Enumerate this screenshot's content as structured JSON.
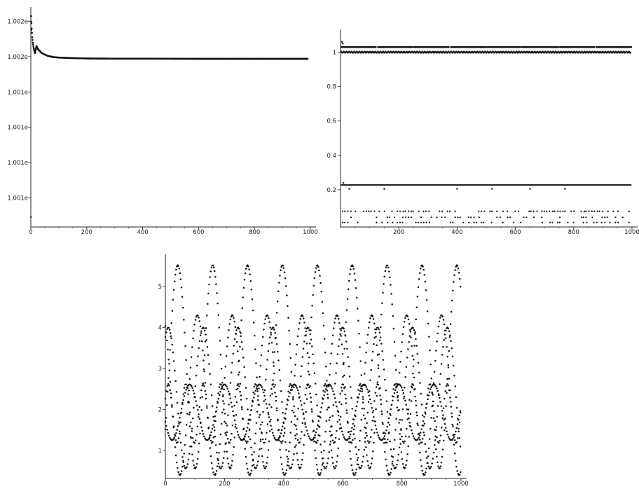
{
  "chart_data": [
    {
      "type": "scatter",
      "title": "",
      "xlabel": "",
      "ylabel": "",
      "xlim": [
        0,
        1000
      ],
      "ylim": [
        1.00095,
        1.00215
      ],
      "grid": false,
      "x_ticks": [
        0,
        200,
        400,
        600,
        800,
        1000
      ],
      "y_ticks": [
        {
          "value": 1.0011,
          "label": "1.001e"
        },
        {
          "value": 1.0013,
          "label": "1.001e"
        },
        {
          "value": 1.0015,
          "label": "1.001e"
        },
        {
          "value": 1.0017,
          "label": "1.001e"
        },
        {
          "value": 1.0019,
          "label": "1.002e"
        },
        {
          "value": 1.0021,
          "label": "1.002e"
        }
      ],
      "series": [
        {
          "description": "decaying curve",
          "points": [
            [
              1,
              1.00213
            ],
            [
              2,
              1.00209
            ],
            [
              3,
              1.00206
            ],
            [
              5,
              1.00201
            ],
            [
              7,
              1.00198
            ],
            [
              10,
              1.00195
            ],
            [
              15,
              1.00192
            ],
            [
              20,
              1.00196
            ],
            [
              25,
              1.001945
            ],
            [
              30,
              1.001935
            ],
            [
              40,
              1.00192
            ],
            [
              50,
              1.001912
            ],
            [
              60,
              1.001905
            ],
            [
              80,
              1.001898
            ],
            [
              100,
              1.001895
            ],
            [
              150,
              1.001892
            ],
            [
              200,
              1.00189
            ],
            [
              300,
              1.001889
            ],
            [
              400,
              1.001889
            ],
            [
              600,
              1.001888
            ],
            [
              800,
              1.001888
            ],
            [
              990,
              1.001888
            ]
          ]
        }
      ]
    },
    {
      "type": "scatter",
      "title": "",
      "xlabel": "",
      "ylabel": "",
      "xlim": [
        0,
        1000
      ],
      "ylim": [
        0,
        1.1
      ],
      "grid": false,
      "x_ticks": [
        200,
        400,
        600,
        800,
        1000
      ],
      "y_ticks": [
        0.2,
        0.4,
        0.6,
        0.8,
        1
      ],
      "bands": [
        {
          "y": 1.03,
          "gaps": [
            125,
            250,
            375,
            500,
            620,
            750,
            875
          ]
        },
        {
          "y": 1.0
        },
        {
          "y": 0.228
        }
      ],
      "outliers": [
        [
          5,
          1.06
        ],
        [
          8,
          1.05
        ],
        [
          10,
          0.24
        ],
        [
          30,
          0.205
        ],
        [
          150,
          0.205
        ],
        [
          400,
          0.205
        ],
        [
          520,
          0.205
        ],
        [
          650,
          0.205
        ],
        [
          770,
          0.205
        ]
      ],
      "low_rows": [
        0.075,
        0.04,
        0.01
      ]
    },
    {
      "type": "scatter",
      "title": "",
      "xlabel": "",
      "ylabel": "",
      "xlim": [
        0,
        1000
      ],
      "ylim": [
        0.4,
        5.65
      ],
      "grid": false,
      "x_ticks": [
        0,
        200,
        400,
        600,
        800,
        1000
      ],
      "y_ticks": [
        1,
        2,
        3,
        4,
        5
      ],
      "series": [
        {
          "description": "oscillation A",
          "center": 3.04,
          "amplitude": 2.48,
          "period": 118,
          "phase_deg": -38
        },
        {
          "description": "oscillation B",
          "center": 2.35,
          "amplitude": 1.95,
          "period": 118,
          "phase_deg": 120
        },
        {
          "description": "oscillation C",
          "center": 2.28,
          "amplitude": 1.72,
          "period": 118,
          "phase_deg": 60
        },
        {
          "description": "oscillation D",
          "center": 1.93,
          "amplitude": 0.68,
          "period": 118,
          "phase_deg": 200
        },
        {
          "description": "oscillation E",
          "center": 1.9,
          "amplitude": 0.72,
          "period": 59,
          "phase_deg": 30
        }
      ]
    }
  ]
}
